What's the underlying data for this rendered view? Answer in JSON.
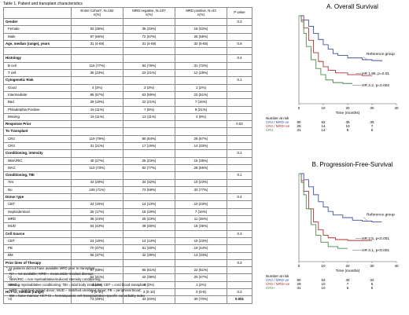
{
  "table": {
    "title": "Table 1. Patient and transplant characteristics",
    "header": [
      "",
      "Entire Cohort*, N=162\nn(%)",
      "MRD negative, N=107\nn(%)",
      "MRD positive, N=43\nn(%)",
      "P value"
    ],
    "rows": [
      {
        "kind": "sec",
        "cells": [
          "Gender",
          "",
          "",
          "",
          "0.3"
        ]
      },
      {
        "kind": "sub",
        "cells": [
          "Female",
          "53 (35%)",
          "35 (33%)",
          "18 (42%)",
          ""
        ]
      },
      {
        "kind": "sub",
        "cells": [
          "Male",
          "97 (65%)",
          "72 (67%)",
          "25 (58%)",
          ""
        ]
      },
      {
        "kind": "sec",
        "cells": [
          "Age, median (range), years",
          "31 (4-69)",
          "31 (4-69)",
          "32 (5-65)",
          "0.8"
        ]
      },
      {
        "kind": "blank",
        "cells": [
          "",
          "",
          "",
          "",
          ""
        ]
      },
      {
        "kind": "sec",
        "cells": [
          "Histology",
          "",
          "",
          "",
          "0.4"
        ]
      },
      {
        "kind": "sub",
        "cells": [
          "B cell",
          "115 (77%)",
          "84 (78%)",
          "31 (72%)",
          ""
        ]
      },
      {
        "kind": "sub",
        "cells": [
          "T cell",
          "35 (23%)",
          "23 (21%)",
          "12 (28%)",
          ""
        ]
      },
      {
        "kind": "sec",
        "cells": [
          "Cytogenetic Risk",
          "",
          "",
          "",
          "0.1"
        ]
      },
      {
        "kind": "sub",
        "cells": [
          "Good",
          "4 (3%)",
          "3 (3%)",
          "1 (2%)",
          ""
        ]
      },
      {
        "kind": "sub",
        "cells": [
          "Intermediate",
          "85 (57%)",
          "63 (59%)",
          "22 (51%)",
          ""
        ]
      },
      {
        "kind": "sub",
        "cells": [
          "Bad",
          "29 (19%)",
          "22 (21%)",
          "7 (16%)",
          ""
        ]
      },
      {
        "kind": "sub",
        "cells": [
          "Philadelphia Positive",
          "16 (11%)",
          "7 (6%)",
          "9 (21%)",
          ""
        ]
      },
      {
        "kind": "sub",
        "cells": [
          "Missing",
          "16 (11%)",
          "12 (11%)",
          "4 (9%)",
          ""
        ]
      },
      {
        "kind": "sec",
        "cells": [
          "Response Prior",
          "",
          "",
          "",
          "0.02"
        ]
      },
      {
        "kind": "sec pv",
        "cells": [
          "To Transplant",
          "",
          "",
          "",
          ""
        ]
      },
      {
        "kind": "sub",
        "cells": [
          "CR2",
          "119 (79%)",
          "90 (84%)",
          "29 (67%)",
          ""
        ]
      },
      {
        "kind": "sub",
        "cells": [
          "CR3",
          "31 (21%)",
          "17 (16%)",
          "14 (33%)",
          ""
        ]
      },
      {
        "kind": "sec",
        "cells": [
          "Conditioning, intensity",
          "",
          "",
          "",
          "0.1"
        ]
      },
      {
        "kind": "sub",
        "cells": [
          "NMA/RIC",
          "40 (27%)",
          "25 (23%)",
          "15 (35%)",
          ""
        ]
      },
      {
        "kind": "sub",
        "cells": [
          "MAC",
          "110 (73%)",
          "82 (77%)",
          "28 (65%)",
          ""
        ]
      },
      {
        "kind": "sec",
        "cells": [
          "Conditioning, TBI",
          "",
          "",
          "",
          "0.1"
        ]
      },
      {
        "kind": "sub",
        "cells": [
          "Yes",
          "44 (29%)",
          "34 (32%)",
          "10 (23%)",
          ""
        ]
      },
      {
        "kind": "sub",
        "cells": [
          "No",
          "106 (71%)",
          "73 (68%)",
          "33 (77%)",
          ""
        ]
      },
      {
        "kind": "sec",
        "cells": [
          "Donor type",
          "",
          "",
          "",
          "0.4"
        ]
      },
      {
        "kind": "sub",
        "cells": [
          "CBT",
          "24 (16%)",
          "14 (13%)",
          "10 (23%)",
          ""
        ]
      },
      {
        "kind": "sub",
        "cells": [
          "Haploidentical",
          "26 (17%)",
          "19 (18%)",
          "7 (16%)",
          ""
        ]
      },
      {
        "kind": "sub",
        "cells": [
          "MRD",
          "36 (24%)",
          "25 (23%)",
          "11 (26%)",
          ""
        ]
      },
      {
        "kind": "sub",
        "cells": [
          "MUD",
          "64 (43%)",
          "49 (46%)",
          "15 (35%)",
          ""
        ]
      },
      {
        "kind": "sec",
        "cells": [
          "Cell Source",
          "",
          "",
          "",
          "0.3"
        ]
      },
      {
        "kind": "sub",
        "cells": [
          "CBT",
          "24 (16%)",
          "14 (13%)",
          "10 (23%)",
          ""
        ]
      },
      {
        "kind": "sub",
        "cells": [
          "PB",
          "70 (47%)",
          "51 (48%)",
          "19 (44%)",
          ""
        ]
      },
      {
        "kind": "sub",
        "cells": [
          "BM",
          "56 (37%)",
          "42 (39%)",
          "14 (33%)",
          ""
        ]
      },
      {
        "kind": "sec",
        "cells": [
          "Prior lines of Therapy",
          "",
          "",
          "",
          "0.3"
        ]
      },
      {
        "kind": "sub",
        "cells": [
          "≤2",
          "87 (58%)",
          "65 (61%)",
          "22 (51%)",
          ""
        ]
      },
      {
        "kind": "sub",
        "cells": [
          ">2",
          "62 (41%)",
          "42 (39%)",
          "20 (47%)",
          ""
        ]
      },
      {
        "kind": "sub",
        "cells": [
          "Missing",
          "1 (1%)",
          "0 (0%)",
          "1 (2%)",
          ""
        ]
      },
      {
        "kind": "sec",
        "cells": [
          "HCT-CI, median (range)",
          "3 (0-10)",
          "3 (0-10)",
          "3 (0-8)",
          "0.3"
        ]
      },
      {
        "kind": "sub pv",
        "cells": [
          ">2",
          "73 (49%)",
          "43 (40%)",
          "30 (70%)",
          "0.001"
        ]
      }
    ]
  },
  "footnotes": [
    "* 12 patients did not have available MRD prior to transplant",
    "NA = not available; MRD = measurable residual disease;",
    "NMA/RIC = non myeloablative/reduced intensity conditioning;",
    "MAC = myeloablative conditioning; TBI = total body irradiation; CBT = cord blood transplant;",
    "MRD = matched related donor; MUD = matched unrelated donor; PB = peripheral blood;",
    "BM = bone marrow; HCT-CI = hematopoietic cell transplantation-specific comorbidity index"
  ],
  "chart_data": [
    {
      "type": "line",
      "title": "A. Overall Survival",
      "xlabel": "Time (months)",
      "ylabel": "",
      "xlim": [
        0,
        40
      ],
      "ylim": [
        0,
        1
      ],
      "xticks": [
        0,
        10,
        20,
        30,
        40
      ],
      "yticks": [],
      "grid": false,
      "series": [
        {
          "name": "Reference group",
          "color": "#3f51a6",
          "x": [
            0,
            2,
            4,
            6,
            8,
            10,
            12,
            14,
            16,
            20,
            26,
            30,
            34
          ],
          "y": [
            1.0,
            0.95,
            0.88,
            0.8,
            0.73,
            0.67,
            0.62,
            0.57,
            0.55,
            0.52,
            0.5,
            0.49,
            0.48
          ]
        },
        {
          "name": "CR2 / MRD+ve",
          "color": "#b03030",
          "x": [
            0,
            1,
            2,
            4,
            6,
            8,
            10,
            12,
            15,
            20,
            26,
            30
          ],
          "y": [
            1.0,
            0.95,
            0.86,
            0.72,
            0.58,
            0.48,
            0.42,
            0.38,
            0.35,
            0.33,
            0.32,
            0.32
          ]
        },
        {
          "name": "CR3",
          "color": "#4a8a4a",
          "x": [
            0,
            1,
            2,
            3,
            5,
            7,
            9,
            11,
            14,
            18,
            22
          ],
          "y": [
            1.0,
            0.93,
            0.8,
            0.65,
            0.5,
            0.4,
            0.33,
            0.27,
            0.24,
            0.23,
            0.23
          ]
        }
      ],
      "annotations": [
        "Reference group",
        "HR 1.96, p=0.01",
        "HR 2.2, p=0.002"
      ],
      "risk_table": {
        "header": "Number at risk",
        "rows": [
          {
            "label": "CR2 / MRD-ve",
            "values": [
              "90",
              "62",
              "45",
              "36"
            ]
          },
          {
            "label": "CR2 / MRD+ve",
            "values": [
              "29",
              "14",
              "10",
              "7"
            ]
          },
          {
            "label": "CR3",
            "values": [
              "31",
              "14",
              "8",
              "6"
            ]
          }
        ]
      }
    },
    {
      "type": "line",
      "title": "B. Progression-Free-Survival",
      "xlabel": "Time (months)",
      "ylabel": "",
      "xlim": [
        0,
        40
      ],
      "ylim": [
        0,
        1
      ],
      "xticks": [
        0,
        10,
        20,
        30,
        40
      ],
      "yticks": [],
      "grid": false,
      "series": [
        {
          "name": "Reference group",
          "color": "#3f51a6",
          "x": [
            0,
            2,
            4,
            6,
            8,
            10,
            12,
            14,
            18,
            22,
            26,
            30,
            34
          ],
          "y": [
            1.0,
            0.93,
            0.85,
            0.76,
            0.68,
            0.62,
            0.57,
            0.53,
            0.5,
            0.47,
            0.46,
            0.45,
            0.45
          ]
        },
        {
          "name": "CR2 / MRD+ve",
          "color": "#b03030",
          "x": [
            0,
            1,
            2,
            4,
            6,
            8,
            10,
            12,
            15,
            20,
            26,
            30
          ],
          "y": [
            1.0,
            0.92,
            0.8,
            0.6,
            0.45,
            0.36,
            0.3,
            0.27,
            0.25,
            0.24,
            0.24,
            0.24
          ]
        },
        {
          "name": "CR3",
          "color": "#4a8a4a",
          "x": [
            0,
            1,
            2,
            3,
            5,
            7,
            9,
            12,
            16,
            20
          ],
          "y": [
            1.0,
            0.9,
            0.76,
            0.6,
            0.42,
            0.3,
            0.22,
            0.17,
            0.15,
            0.15
          ]
        }
      ],
      "annotations": [
        "Reference group",
        "HR 2.5, p<0.001",
        "HR 3.1, p<0.001"
      ],
      "risk_table": {
        "header": "Number at risk",
        "rows": [
          {
            "label": "CR2 / MRD-ve",
            "values": [
              "90",
              "53",
              "40",
              "32"
            ]
          },
          {
            "label": "CR2 / MRD+ve",
            "values": [
              "29",
              "10",
              "7",
              "5"
            ]
          },
          {
            "label": "CR3+",
            "values": [
              "31",
              "10",
              "6",
              "5"
            ]
          }
        ]
      }
    }
  ]
}
